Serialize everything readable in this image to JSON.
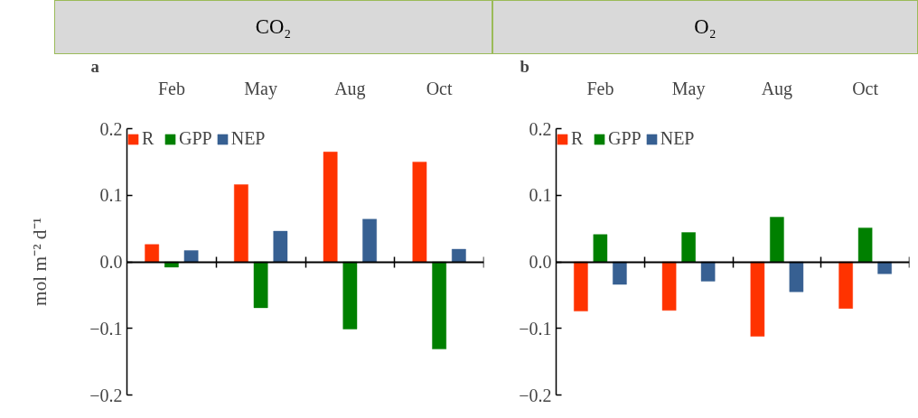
{
  "chart_data": [
    {
      "type": "bar",
      "title": "CO₂",
      "annotations": [
        "a"
      ],
      "ylabel": "mol m⁻² d⁻¹",
      "categories": [
        "Feb",
        "May",
        "Aug",
        "Oct"
      ],
      "series": [
        {
          "name": "R",
          "color": "#ff3300",
          "values": [
            0.026,
            0.116,
            0.165,
            0.15
          ]
        },
        {
          "name": "GPP",
          "color": "#008000",
          "values": [
            -0.008,
            -0.069,
            -0.101,
            -0.131
          ]
        },
        {
          "name": "NEP",
          "color": "#376092",
          "values": [
            0.017,
            0.046,
            0.064,
            0.019
          ]
        }
      ],
      "ylim": [
        -0.2,
        0.2
      ],
      "yticks": [
        {
          "value": -0.2,
          "label": "−0.2"
        },
        {
          "value": -0.1,
          "label": "−0.1"
        },
        {
          "value": 0,
          "label": "0.0"
        },
        {
          "value": 0.1,
          "label": "0.1"
        },
        {
          "value": 0.2,
          "label": "0.2"
        }
      ],
      "legend": "top left"
    },
    {
      "type": "bar",
      "title": "O₂",
      "annotations": [
        "b"
      ],
      "categories": [
        "Feb",
        "May",
        "Aug",
        "Oct"
      ],
      "series": [
        {
          "name": "R",
          "color": "#ff3300",
          "values": [
            -0.074,
            -0.073,
            -0.112,
            -0.07
          ]
        },
        {
          "name": "GPP",
          "color": "#008000",
          "values": [
            0.041,
            0.044,
            0.067,
            0.051
          ]
        },
        {
          "name": "NEP",
          "color": "#376092",
          "values": [
            -0.034,
            -0.029,
            -0.045,
            -0.018
          ]
        }
      ],
      "ylim": [
        -0.2,
        0.2
      ],
      "yticks": [
        {
          "value": -0.2,
          "label": "−0.2"
        },
        {
          "value": -0.1,
          "label": "−0.1"
        },
        {
          "value": 0,
          "label": "0.0"
        },
        {
          "value": 0.1,
          "label": "0.1"
        },
        {
          "value": 0.2,
          "label": "0.2"
        }
      ],
      "legend": "top left"
    }
  ]
}
